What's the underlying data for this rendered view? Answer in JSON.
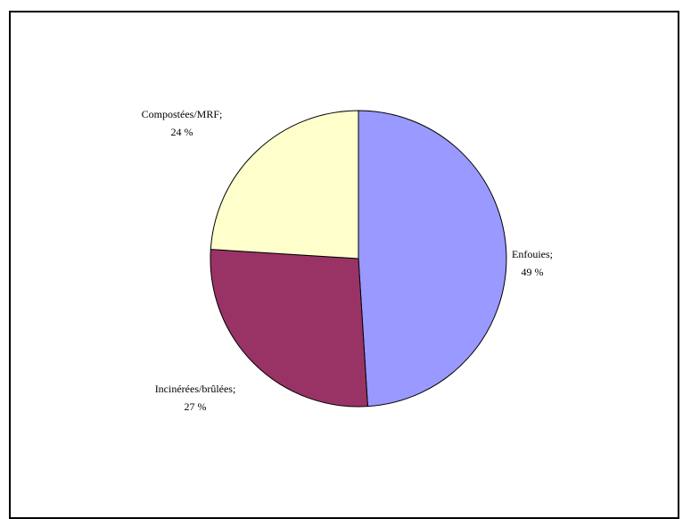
{
  "chart_data": {
    "type": "pie",
    "title": "",
    "categories": [
      "Enfouies",
      "Incinérées/brûlées",
      "Compostées/MRF"
    ],
    "values": [
      49,
      27,
      24
    ],
    "unit": "%",
    "labels": [
      {
        "name": "Enfouies;",
        "value": "49 %"
      },
      {
        "name": "Incinérées/brûlées;",
        "value": "27 %"
      },
      {
        "name": "Compostées/MRF;",
        "value": "24 %"
      }
    ],
    "colors": [
      "#9999FF",
      "#993366",
      "#FFFFCC"
    ],
    "legend": "none"
  }
}
